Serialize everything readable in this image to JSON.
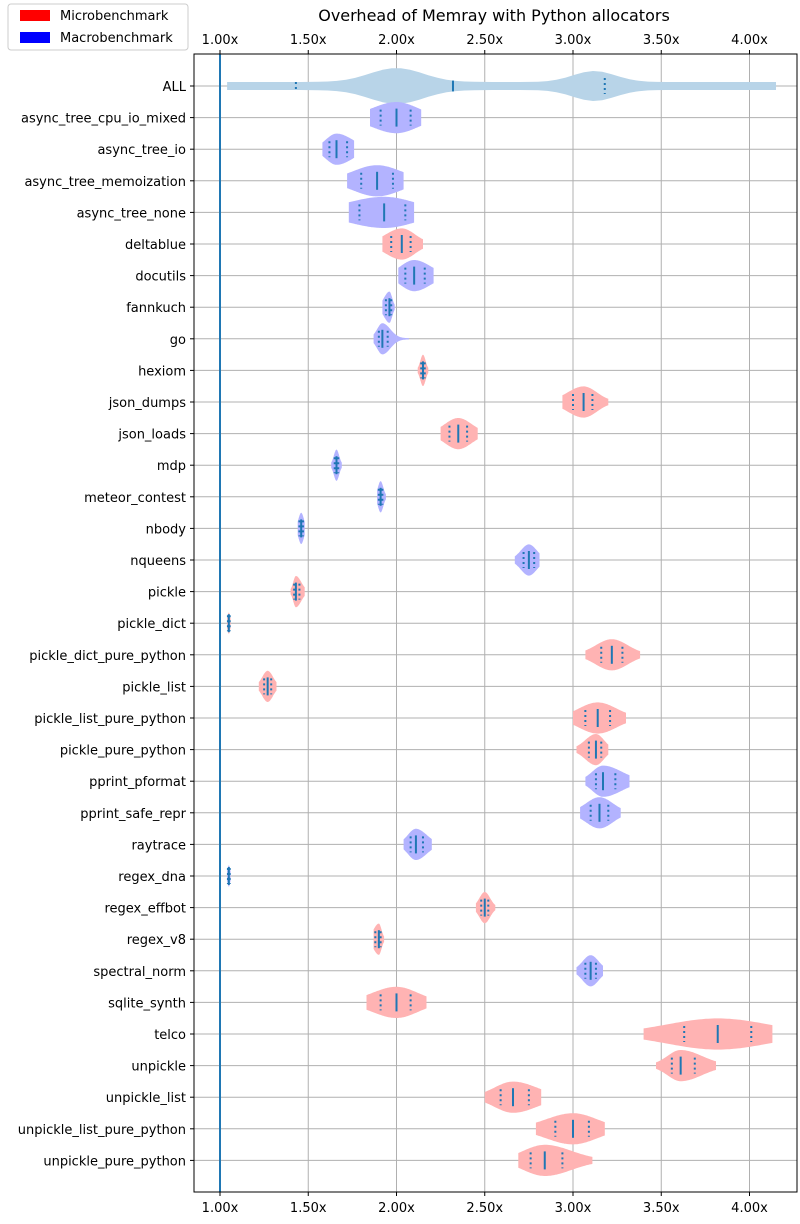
{
  "chart_data": {
    "type": "violin",
    "title": "Overhead of Memray with Python allocators",
    "xlim": [
      0.85,
      4.27
    ],
    "xticks": [
      1.0,
      1.5,
      2.0,
      2.5,
      3.0,
      3.5,
      4.0
    ],
    "xtick_labels": [
      "1.00x",
      "1.50x",
      "2.00x",
      "2.50x",
      "3.00x",
      "3.50x",
      "4.00x"
    ],
    "grid": true,
    "reference_line": 1.0,
    "legend": {
      "placement": "top-left",
      "entries": [
        {
          "label": "Microbenchmark",
          "color": "#ff0000"
        },
        {
          "label": "Macrobenchmark",
          "color": "#0000ff"
        }
      ]
    },
    "colors": {
      "micro_fill": "#ffb3b3",
      "macro_fill": "#b3b3ff",
      "all_fill": "#b8d4e8",
      "stat_line": "#1f77b4",
      "grid": "#b0b0b0"
    },
    "series": [
      {
        "name": "ALL",
        "kind": "all",
        "min": 1.04,
        "q1": 1.43,
        "median": 2.32,
        "q3": 3.18,
        "max": 4.15,
        "modes": [
          2.0,
          3.12
        ]
      },
      {
        "name": "async_tree_cpu_io_mixed",
        "kind": "macro",
        "min": 1.85,
        "q1": 1.91,
        "median": 2.0,
        "q3": 2.08,
        "max": 2.14
      },
      {
        "name": "async_tree_io",
        "kind": "macro",
        "min": 1.58,
        "q1": 1.62,
        "median": 1.66,
        "q3": 1.72,
        "max": 1.76
      },
      {
        "name": "async_tree_memoization",
        "kind": "macro",
        "min": 1.72,
        "q1": 1.8,
        "median": 1.89,
        "q3": 1.98,
        "max": 2.04
      },
      {
        "name": "async_tree_none",
        "kind": "macro",
        "min": 1.73,
        "q1": 1.79,
        "median": 1.93,
        "q3": 2.05,
        "max": 2.1
      },
      {
        "name": "deltablue",
        "kind": "micro",
        "min": 1.92,
        "q1": 1.97,
        "median": 2.03,
        "q3": 2.08,
        "max": 2.15
      },
      {
        "name": "docutils",
        "kind": "macro",
        "min": 2.01,
        "q1": 2.05,
        "median": 2.1,
        "q3": 2.16,
        "max": 2.21
      },
      {
        "name": "fannkuch",
        "kind": "macro",
        "min": 1.92,
        "q1": 1.94,
        "median": 1.96,
        "q3": 1.97,
        "max": 1.99
      },
      {
        "name": "go",
        "kind": "macro",
        "min": 1.87,
        "q1": 1.9,
        "median": 1.92,
        "q3": 1.95,
        "max": 2.07
      },
      {
        "name": "hexiom",
        "kind": "micro",
        "min": 2.12,
        "q1": 2.14,
        "median": 2.15,
        "q3": 2.16,
        "max": 2.18
      },
      {
        "name": "json_dumps",
        "kind": "micro",
        "min": 2.94,
        "q1": 3.0,
        "median": 3.06,
        "q3": 3.11,
        "max": 3.2
      },
      {
        "name": "json_loads",
        "kind": "micro",
        "min": 2.25,
        "q1": 2.3,
        "median": 2.35,
        "q3": 2.4,
        "max": 2.46
      },
      {
        "name": "mdp",
        "kind": "macro",
        "min": 1.63,
        "q1": 1.65,
        "median": 1.66,
        "q3": 1.67,
        "max": 1.69
      },
      {
        "name": "meteor_contest",
        "kind": "macro",
        "min": 1.89,
        "q1": 1.9,
        "median": 1.91,
        "q3": 1.92,
        "max": 1.94
      },
      {
        "name": "nbody",
        "kind": "macro",
        "min": 1.44,
        "q1": 1.45,
        "median": 1.46,
        "q3": 1.47,
        "max": 1.48
      },
      {
        "name": "nqueens",
        "kind": "macro",
        "min": 2.67,
        "q1": 2.72,
        "median": 2.75,
        "q3": 2.78,
        "max": 2.81
      },
      {
        "name": "pickle",
        "kind": "micro",
        "min": 1.4,
        "q1": 1.42,
        "median": 1.43,
        "q3": 1.45,
        "max": 1.48
      },
      {
        "name": "pickle_dict",
        "kind": "micro",
        "min": 1.04,
        "q1": 1.045,
        "median": 1.05,
        "q3": 1.055,
        "max": 1.06
      },
      {
        "name": "pickle_dict_pure_python",
        "kind": "micro",
        "min": 3.07,
        "q1": 3.16,
        "median": 3.22,
        "q3": 3.28,
        "max": 3.38
      },
      {
        "name": "pickle_list",
        "kind": "micro",
        "min": 1.22,
        "q1": 1.25,
        "median": 1.27,
        "q3": 1.29,
        "max": 1.32
      },
      {
        "name": "pickle_list_pure_python",
        "kind": "micro",
        "min": 3.0,
        "q1": 3.07,
        "median": 3.14,
        "q3": 3.21,
        "max": 3.3
      },
      {
        "name": "pickle_pure_python",
        "kind": "micro",
        "min": 3.02,
        "q1": 3.09,
        "median": 3.13,
        "q3": 3.16,
        "max": 3.2
      },
      {
        "name": "pprint_pformat",
        "kind": "macro",
        "min": 3.07,
        "q1": 3.13,
        "median": 3.17,
        "q3": 3.24,
        "max": 3.32
      },
      {
        "name": "pprint_safe_repr",
        "kind": "macro",
        "min": 3.04,
        "q1": 3.1,
        "median": 3.15,
        "q3": 3.2,
        "max": 3.27
      },
      {
        "name": "raytrace",
        "kind": "macro",
        "min": 2.04,
        "q1": 2.08,
        "median": 2.11,
        "q3": 2.15,
        "max": 2.2
      },
      {
        "name": "regex_dna",
        "kind": "macro",
        "min": 1.04,
        "q1": 1.045,
        "median": 1.05,
        "q3": 1.055,
        "max": 1.06
      },
      {
        "name": "regex_effbot",
        "kind": "micro",
        "min": 2.45,
        "q1": 2.48,
        "median": 2.5,
        "q3": 2.52,
        "max": 2.56
      },
      {
        "name": "regex_v8",
        "kind": "micro",
        "min": 1.87,
        "q1": 1.88,
        "median": 1.9,
        "q3": 1.91,
        "max": 1.93
      },
      {
        "name": "spectral_norm",
        "kind": "macro",
        "min": 3.02,
        "q1": 3.07,
        "median": 3.1,
        "q3": 3.13,
        "max": 3.17
      },
      {
        "name": "sqlite_synth",
        "kind": "micro",
        "min": 1.83,
        "q1": 1.91,
        "median": 2.0,
        "q3": 2.08,
        "max": 2.17
      },
      {
        "name": "telco",
        "kind": "micro",
        "min": 3.4,
        "q1": 3.63,
        "median": 3.82,
        "q3": 4.01,
        "max": 4.13
      },
      {
        "name": "unpickle",
        "kind": "micro",
        "min": 3.47,
        "q1": 3.56,
        "median": 3.61,
        "q3": 3.69,
        "max": 3.81
      },
      {
        "name": "unpickle_list",
        "kind": "micro",
        "min": 2.5,
        "q1": 2.59,
        "median": 2.66,
        "q3": 2.75,
        "max": 2.82
      },
      {
        "name": "unpickle_list_pure_python",
        "kind": "micro",
        "min": 2.79,
        "q1": 2.9,
        "median": 3.0,
        "q3": 3.09,
        "max": 3.18
      },
      {
        "name": "unpickle_pure_python",
        "kind": "micro",
        "min": 2.69,
        "q1": 2.76,
        "median": 2.84,
        "q3": 2.94,
        "max": 3.11
      }
    ]
  }
}
